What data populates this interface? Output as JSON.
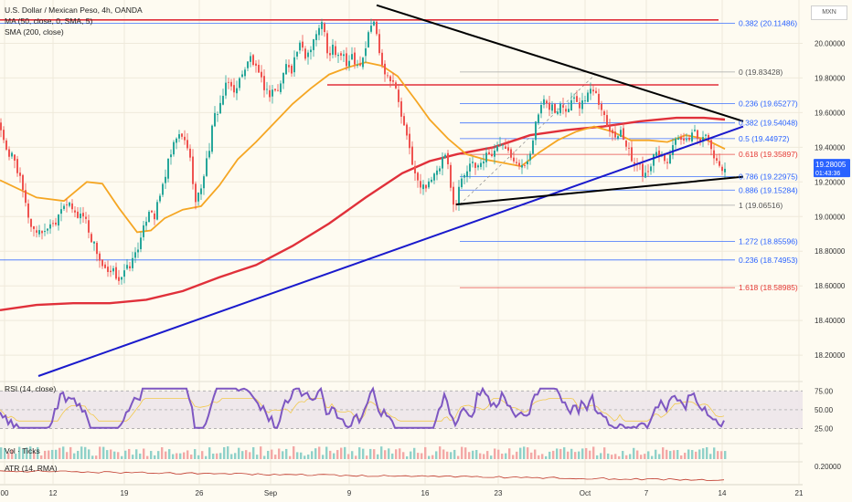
{
  "header": {
    "title": "U.S. Dollar / Mexican Peso, 4h, OANDA",
    "indicator_ma": "MA (50, close, 0, SMA, 5)",
    "indicator_sma": "SMA (200, close)",
    "symbol_box": "MXN"
  },
  "panes": {
    "rsi_label": "RSI (14, close)",
    "vol_label": "Vol · Ticks",
    "atr_label": "ATR (14, RMA)"
  },
  "colors": {
    "background": "#fefbf1",
    "up_candle": "#26a69a",
    "down_candle": "#ef5350",
    "sma50": "#f5a623",
    "sma200": "#e0303a",
    "trend_blue": "#1a1acc",
    "trend_black": "#000000",
    "fib_blue": "#2962ff",
    "fib_red": "#e53935",
    "rsi_line": "#7e57c2",
    "price_tag": "#2962ff"
  },
  "chart_data": {
    "type": "candlestick",
    "symbol": "USDMXN",
    "interval": "4h",
    "ylim": [
      18.09,
      20.25
    ],
    "y_ticks": [
      "20.00000",
      "19.80000",
      "19.60000",
      "19.40000",
      "19.20000",
      "19.00000",
      "18.80000",
      "18.60000",
      "18.40000",
      "18.20000"
    ],
    "x_ticks": [
      "00",
      "12",
      "19",
      "26",
      "Sep",
      "9",
      "16",
      "23",
      "Oct",
      "7",
      "14",
      "21"
    ],
    "last_price": "19.28005",
    "countdown": "01:43:36",
    "fib_levels": [
      {
        "label": "0.382 (20.11486)",
        "value": 20.11486,
        "color": "blue"
      },
      {
        "label": "0 (19.83428)",
        "value": 19.83428,
        "color": "gray"
      },
      {
        "label": "0.236 (19.65277)",
        "value": 19.65277,
        "color": "blue"
      },
      {
        "label": "0.382 (19.54048)",
        "value": 19.54048,
        "color": "blue"
      },
      {
        "label": "0.5 (19.44972)",
        "value": 19.44972,
        "color": "blue"
      },
      {
        "label": "0.618 (19.35897)",
        "value": 19.35897,
        "color": "red"
      },
      {
        "label": "0.786 (19.22975)",
        "value": 19.22975,
        "color": "blue"
      },
      {
        "label": "0.886 (19.15284)",
        "value": 19.15284,
        "color": "blue"
      },
      {
        "label": "1 (19.06516)",
        "value": 19.06516,
        "color": "gray"
      },
      {
        "label": "1.272 (18.85596)",
        "value": 18.85596,
        "color": "blue"
      },
      {
        "label": "0.236 (18.74953)",
        "value": 18.74953,
        "color": "blue"
      },
      {
        "label": "1.618 (18.58985)",
        "value": 18.58985,
        "color": "red"
      }
    ],
    "price_path": [
      [
        -2,
        19.54
      ],
      [
        3,
        19.45
      ],
      [
        8,
        19.32
      ],
      [
        13,
        19.37
      ],
      [
        18,
        19.27
      ],
      [
        23,
        19.17
      ],
      [
        28,
        19.04
      ],
      [
        33,
        18.95
      ],
      [
        38,
        18.91
      ],
      [
        43,
        18.93
      ],
      [
        48,
        18.9
      ],
      [
        53,
        18.97
      ],
      [
        58,
        18.95
      ],
      [
        63,
        19.02
      ],
      [
        68,
        19.08
      ],
      [
        73,
        19.07
      ],
      [
        78,
        19.04
      ],
      [
        83,
        19.0
      ],
      [
        88,
        19.02
      ],
      [
        93,
        18.98
      ],
      [
        98,
        18.88
      ],
      [
        103,
        18.83
      ],
      [
        108,
        18.75
      ],
      [
        113,
        18.69
      ],
      [
        118,
        18.66
      ],
      [
        123,
        18.68
      ],
      [
        128,
        18.64
      ],
      [
        133,
        18.66
      ],
      [
        138,
        18.7
      ],
      [
        143,
        18.73
      ],
      [
        148,
        18.81
      ],
      [
        153,
        18.86
      ],
      [
        158,
        18.97
      ],
      [
        163,
        19.06
      ],
      [
        168,
        19.0
      ],
      [
        173,
        19.1
      ],
      [
        178,
        19.2
      ],
      [
        183,
        19.31
      ],
      [
        188,
        19.39
      ],
      [
        193,
        19.47
      ],
      [
        198,
        19.45
      ],
      [
        203,
        19.43
      ],
      [
        208,
        19.3
      ],
      [
        213,
        19.08
      ],
      [
        218,
        19.15
      ],
      [
        223,
        19.27
      ],
      [
        228,
        19.4
      ],
      [
        233,
        19.57
      ],
      [
        238,
        19.62
      ],
      [
        243,
        19.7
      ],
      [
        248,
        19.78
      ],
      [
        253,
        19.74
      ],
      [
        258,
        19.73
      ],
      [
        263,
        19.83
      ],
      [
        268,
        19.86
      ],
      [
        273,
        19.92
      ],
      [
        278,
        19.86
      ],
      [
        283,
        19.8
      ],
      [
        288,
        19.75
      ],
      [
        293,
        19.7
      ],
      [
        298,
        19.74
      ],
      [
        303,
        19.72
      ],
      [
        308,
        19.81
      ],
      [
        313,
        19.89
      ],
      [
        318,
        19.85
      ],
      [
        323,
        19.95
      ],
      [
        328,
        19.99
      ],
      [
        333,
        19.92
      ],
      [
        338,
        19.97
      ],
      [
        343,
        20.04
      ],
      [
        348,
        20.08
      ],
      [
        353,
        20.13
      ],
      [
        358,
        19.88
      ],
      [
        363,
        19.98
      ],
      [
        368,
        19.92
      ],
      [
        373,
        19.94
      ],
      [
        378,
        19.87
      ],
      [
        383,
        19.95
      ],
      [
        388,
        19.89
      ],
      [
        393,
        19.88
      ],
      [
        398,
        19.95
      ],
      [
        403,
        20.08
      ],
      [
        408,
        20.13
      ],
      [
        413,
        19.99
      ],
      [
        418,
        19.86
      ],
      [
        423,
        19.81
      ],
      [
        428,
        19.8
      ],
      [
        433,
        19.71
      ],
      [
        438,
        19.58
      ],
      [
        443,
        19.47
      ],
      [
        448,
        19.37
      ],
      [
        453,
        19.24
      ],
      [
        458,
        19.17
      ],
      [
        463,
        19.17
      ],
      [
        468,
        19.21
      ],
      [
        473,
        19.23
      ],
      [
        478,
        19.25
      ],
      [
        483,
        19.33
      ],
      [
        488,
        19.34
      ],
      [
        493,
        19.11
      ],
      [
        498,
        19.07
      ],
      [
        503,
        19.22
      ],
      [
        508,
        19.26
      ],
      [
        513,
        19.31
      ],
      [
        518,
        19.28
      ],
      [
        523,
        19.3
      ],
      [
        528,
        19.33
      ],
      [
        533,
        19.38
      ],
      [
        538,
        19.35
      ],
      [
        543,
        19.4
      ],
      [
        548,
        19.44
      ],
      [
        553,
        19.41
      ],
      [
        558,
        19.36
      ],
      [
        563,
        19.33
      ],
      [
        568,
        19.3
      ],
      [
        573,
        19.28
      ],
      [
        578,
        19.35
      ],
      [
        583,
        19.49
      ],
      [
        588,
        19.59
      ],
      [
        593,
        19.66
      ],
      [
        598,
        19.63
      ],
      [
        603,
        19.64
      ],
      [
        608,
        19.58
      ],
      [
        613,
        19.67
      ],
      [
        618,
        19.62
      ],
      [
        623,
        19.66
      ],
      [
        628,
        19.71
      ],
      [
        633,
        19.63
      ],
      [
        638,
        19.69
      ],
      [
        643,
        19.71
      ],
      [
        648,
        19.74
      ],
      [
        653,
        19.66
      ],
      [
        658,
        19.62
      ],
      [
        663,
        19.54
      ],
      [
        668,
        19.5
      ],
      [
        673,
        19.44
      ],
      [
        678,
        19.52
      ],
      [
        683,
        19.42
      ],
      [
        688,
        19.36
      ],
      [
        693,
        19.3
      ],
      [
        698,
        19.31
      ],
      [
        703,
        19.24
      ],
      [
        708,
        19.28
      ],
      [
        713,
        19.33
      ],
      [
        718,
        19.37
      ],
      [
        723,
        19.35
      ],
      [
        728,
        19.31
      ],
      [
        733,
        19.37
      ],
      [
        738,
        19.43
      ],
      [
        743,
        19.45
      ],
      [
        748,
        19.41
      ],
      [
        753,
        19.46
      ],
      [
        758,
        19.5
      ],
      [
        763,
        19.45
      ],
      [
        768,
        19.47
      ],
      [
        773,
        19.44
      ],
      [
        778,
        19.38
      ],
      [
        783,
        19.3
      ],
      [
        788,
        19.29
      ],
      [
        793,
        19.28
      ]
    ],
    "sma50_path": [
      [
        0,
        19.21
      ],
      [
        40,
        19.11
      ],
      [
        70,
        19.09
      ],
      [
        95,
        19.2
      ],
      [
        112,
        19.19
      ],
      [
        130,
        19.05
      ],
      [
        150,
        18.91
      ],
      [
        165,
        18.92
      ],
      [
        180,
        18.99
      ],
      [
        200,
        19.04
      ],
      [
        220,
        19.06
      ],
      [
        240,
        19.18
      ],
      [
        260,
        19.33
      ],
      [
        280,
        19.43
      ],
      [
        300,
        19.54
      ],
      [
        320,
        19.65
      ],
      [
        340,
        19.74
      ],
      [
        360,
        19.82
      ],
      [
        380,
        19.86
      ],
      [
        400,
        19.89
      ],
      [
        418,
        19.87
      ],
      [
        435,
        19.81
      ],
      [
        455,
        19.67
      ],
      [
        470,
        19.56
      ],
      [
        490,
        19.45
      ],
      [
        510,
        19.36
      ],
      [
        530,
        19.33
      ],
      [
        550,
        19.31
      ],
      [
        570,
        19.29
      ],
      [
        590,
        19.37
      ],
      [
        610,
        19.44
      ],
      [
        630,
        19.49
      ],
      [
        650,
        19.52
      ],
      [
        670,
        19.49
      ],
      [
        690,
        19.44
      ],
      [
        710,
        19.44
      ],
      [
        730,
        19.43
      ],
      [
        750,
        19.47
      ],
      [
        770,
        19.45
      ],
      [
        793,
        19.39
      ]
    ],
    "sma200_path": [
      [
        0,
        18.46
      ],
      [
        40,
        18.49
      ],
      [
        80,
        18.5
      ],
      [
        120,
        18.5
      ],
      [
        160,
        18.52
      ],
      [
        200,
        18.57
      ],
      [
        240,
        18.65
      ],
      [
        280,
        18.72
      ],
      [
        320,
        18.83
      ],
      [
        360,
        18.96
      ],
      [
        400,
        19.11
      ],
      [
        440,
        19.25
      ],
      [
        470,
        19.32
      ],
      [
        500,
        19.36
      ],
      [
        540,
        19.4
      ],
      [
        580,
        19.47
      ],
      [
        620,
        19.5
      ],
      [
        660,
        19.52
      ],
      [
        700,
        19.55
      ],
      [
        740,
        19.57
      ],
      [
        770,
        19.57
      ],
      [
        793,
        19.56
      ]
    ]
  }
}
